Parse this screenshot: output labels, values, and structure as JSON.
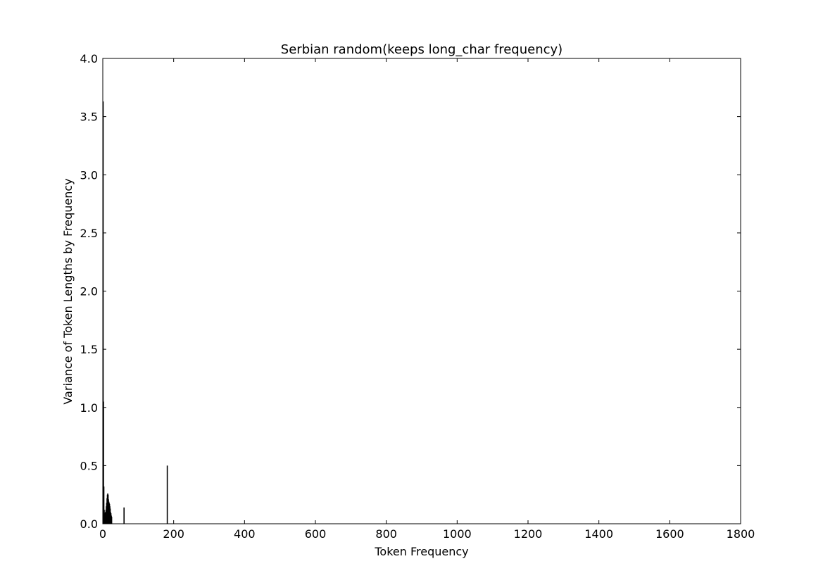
{
  "chart_data": {
    "type": "bar",
    "title": "Serbian random(keeps long_char frequency)",
    "xlabel": "Token Frequency",
    "ylabel": "Variance of Token Lengths by Frequency",
    "xlim": [
      0,
      1800
    ],
    "ylim": [
      0,
      4.0
    ],
    "xticks": [
      0,
      200,
      400,
      600,
      800,
      1000,
      1200,
      1400,
      1600,
      1800
    ],
    "xtick_labels": [
      "0",
      "200",
      "400",
      "600",
      "800",
      "1000",
      "1200",
      "1400",
      "1600",
      "1800"
    ],
    "yticks": [
      0,
      0.5,
      1.0,
      1.5,
      2.0,
      2.5,
      3.0,
      3.5,
      4.0
    ],
    "ytick_labels": [
      "0.0",
      "0.5",
      "1.0",
      "1.5",
      "2.0",
      "2.5",
      "3.0",
      "3.5",
      "4.0"
    ],
    "grid": false,
    "bar_color": "#000000",
    "x": [
      1,
      2,
      3,
      4,
      5,
      6,
      7,
      8,
      9,
      10,
      11,
      12,
      13,
      14,
      15,
      16,
      17,
      18,
      19,
      20,
      21,
      22,
      23,
      24,
      25,
      60,
      182
    ],
    "values": [
      3.63,
      1.05,
      0.32,
      0.12,
      0.09,
      0.07,
      0.1,
      0.08,
      0.12,
      0.15,
      0.18,
      0.22,
      0.25,
      0.26,
      0.25,
      0.21,
      0.19,
      0.18,
      0.17,
      0.15,
      0.13,
      0.1,
      0.09,
      0.07,
      0.06,
      0.14,
      0.5
    ]
  }
}
